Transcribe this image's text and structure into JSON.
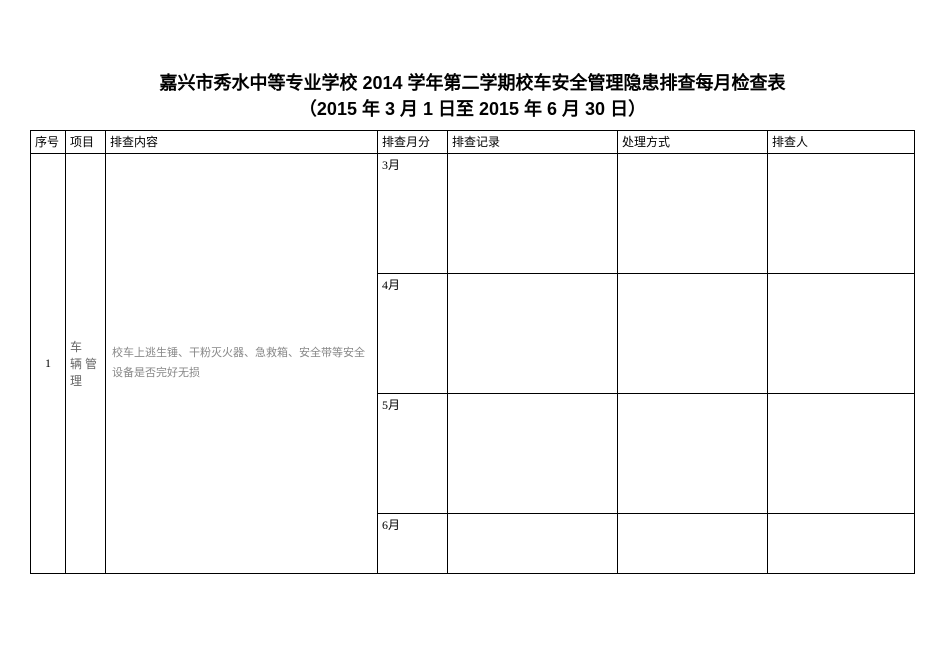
{
  "title": {
    "line1": "嘉兴市秀水中等专业学校 2014 学年第二学期校车安全管理隐患排查每月检查表",
    "line2": "（2015 年 3 月 1 日至 2015 年 6 月 30 日）"
  },
  "headers": {
    "seq": "序号",
    "item": "项目",
    "content": "排查内容",
    "month": "排查月分",
    "record": "排查记录",
    "method": "处理方式",
    "person": "排查人"
  },
  "row": {
    "seq": "1",
    "item": "车 辆管 理",
    "content": "校车上逃生锤、干粉灭火器、急救箱、安全带等安全设备是否完好无损",
    "months": {
      "m3": "3月",
      "m4": "4月",
      "m5": "5月",
      "m6": "6月"
    }
  }
}
